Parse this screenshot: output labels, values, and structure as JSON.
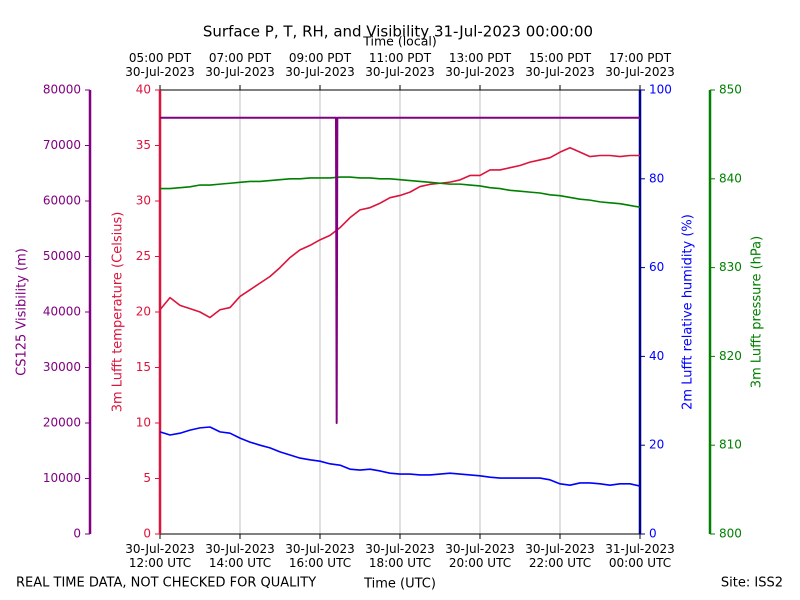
{
  "chart_data": {
    "type": "line",
    "title": "Surface P, T, RH, and Visibility 31-Jul-2023 00:00:00",
    "x_label": "Time (UTC)",
    "x2_label": "Time (local)",
    "footer_left": "REAL TIME DATA, NOT CHECKED FOR QUALITY",
    "footer_right": "Site: ISS2",
    "grid": "x",
    "xlim": [
      "2023-07-30T12:00",
      "2023-07-31T00:00"
    ],
    "xticks": [
      {
        "value": "2023-07-30T12:00",
        "label": "30-Jul-2023\n12:00 UTC"
      },
      {
        "value": "2023-07-30T14:00",
        "label": "30-Jul-2023\n14:00 UTC"
      },
      {
        "value": "2023-07-30T16:00",
        "label": "30-Jul-2023\n16:00 UTC"
      },
      {
        "value": "2023-07-30T18:00",
        "label": "30-Jul-2023\n18:00 UTC"
      },
      {
        "value": "2023-07-30T20:00",
        "label": "30-Jul-2023\n20:00 UTC"
      },
      {
        "value": "2023-07-30T22:00",
        "label": "30-Jul-2023\n22:00 UTC"
      },
      {
        "value": "2023-07-31T00:00",
        "label": "31-Jul-2023\n00:00 UTC"
      }
    ],
    "x2ticks": [
      {
        "value": "2023-07-30T12:00",
        "label": "05:00 PDT\n30-Jul-2023"
      },
      {
        "value": "2023-07-30T14:00",
        "label": "07:00 PDT\n30-Jul-2023"
      },
      {
        "value": "2023-07-30T16:00",
        "label": "09:00 PDT\n30-Jul-2023"
      },
      {
        "value": "2023-07-30T18:00",
        "label": "11:00 PDT\n30-Jul-2023"
      },
      {
        "value": "2023-07-30T20:00",
        "label": "13:00 PDT\n30-Jul-2023"
      },
      {
        "value": "2023-07-30T22:00",
        "label": "15:00 PDT\n30-Jul-2023"
      },
      {
        "value": "2023-07-31T00:00",
        "label": "17:00 PDT\n30-Jul-2023"
      }
    ],
    "ylim": [
      0,
      40
    ],
    "yticks": [
      0,
      5,
      10,
      15,
      20,
      25,
      30,
      35,
      40
    ],
    "y2lim": [
      0,
      100
    ],
    "y2ticks": [
      0,
      20,
      40,
      60,
      80,
      100
    ],
    "y3lim": [
      800,
      850
    ],
    "y3ticks": [
      800,
      810,
      820,
      830,
      840,
      850
    ],
    "y4lim": [
      0,
      80000
    ],
    "y4ticks": [
      0,
      10000,
      20000,
      30000,
      40000,
      50000,
      60000,
      70000,
      80000
    ],
    "x": [
      "2023-07-30T12:00",
      "2023-07-30T12:15",
      "2023-07-30T12:30",
      "2023-07-30T12:45",
      "2023-07-30T13:00",
      "2023-07-30T13:15",
      "2023-07-30T13:30",
      "2023-07-30T13:45",
      "2023-07-30T14:00",
      "2023-07-30T14:15",
      "2023-07-30T14:30",
      "2023-07-30T14:45",
      "2023-07-30T15:00",
      "2023-07-30T15:15",
      "2023-07-30T15:30",
      "2023-07-30T15:45",
      "2023-07-30T16:00",
      "2023-07-30T16:15",
      "2023-07-30T16:30",
      "2023-07-30T16:45",
      "2023-07-30T17:00",
      "2023-07-30T17:15",
      "2023-07-30T17:30",
      "2023-07-30T17:45",
      "2023-07-30T18:00",
      "2023-07-30T18:15",
      "2023-07-30T18:30",
      "2023-07-30T18:45",
      "2023-07-30T19:00",
      "2023-07-30T19:15",
      "2023-07-30T19:30",
      "2023-07-30T19:45",
      "2023-07-30T20:00",
      "2023-07-30T20:15",
      "2023-07-30T20:30",
      "2023-07-30T20:45",
      "2023-07-30T21:00",
      "2023-07-30T21:15",
      "2023-07-30T21:30",
      "2023-07-30T21:45",
      "2023-07-30T22:00",
      "2023-07-30T22:15",
      "2023-07-30T22:30",
      "2023-07-30T22:45",
      "2023-07-30T23:00",
      "2023-07-30T23:15",
      "2023-07-30T23:30",
      "2023-07-30T23:45",
      "2023-07-31T00:00"
    ],
    "series": [
      {
        "name": "3m Lufft temperature (Celsius)",
        "color": "#dc143c",
        "axis": "y",
        "values": [
          20.2,
          21.3,
          20.6,
          20.3,
          20,
          19.5,
          20.2,
          20.4,
          21.4,
          22,
          22.6,
          23.2,
          24,
          24.9,
          25.6,
          26,
          26.5,
          26.9,
          27.6,
          28.5,
          29.2,
          29.4,
          29.8,
          30.3,
          30.5,
          30.8,
          31.3,
          31.5,
          31.6,
          31.7,
          31.9,
          32.3,
          32.3,
          32.8,
          32.8,
          33,
          33.2,
          33.5,
          33.7,
          33.9,
          34.4,
          34.8,
          34.4,
          34,
          34.1,
          34.1,
          34,
          34.1,
          34.1
        ]
      },
      {
        "name": "2m Lufft relative humidity (%)",
        "color": "#0000ff",
        "axis": "y2",
        "values": [
          23,
          22.3,
          22.7,
          23.4,
          23.9,
          24.1,
          23,
          22.7,
          21.6,
          20.7,
          20,
          19.4,
          18.5,
          17.8,
          17.1,
          16.7,
          16.4,
          15.8,
          15.5,
          14.6,
          14.4,
          14.6,
          14.2,
          13.7,
          13.5,
          13.5,
          13.3,
          13.3,
          13.5,
          13.7,
          13.5,
          13.3,
          13.1,
          12.8,
          12.6,
          12.6,
          12.6,
          12.6,
          12.6,
          12.2,
          11.3,
          11,
          11.5,
          11.5,
          11.3,
          11,
          11.3,
          11.3,
          10.8
        ]
      },
      {
        "name": "3m Lufft pressure (hPa)",
        "color": "#008000",
        "axis": "y3",
        "values": [
          838.9,
          838.9,
          839.0,
          839.1,
          839.3,
          839.3,
          839.4,
          839.5,
          839.6,
          839.7,
          839.7,
          839.8,
          839.9,
          840.0,
          840.0,
          840.1,
          840.1,
          840.1,
          840.2,
          840.2,
          840.1,
          840.1,
          840.0,
          840.0,
          839.9,
          839.8,
          839.7,
          839.6,
          839.5,
          839.4,
          839.4,
          839.3,
          839.2,
          839.0,
          838.9,
          838.7,
          838.6,
          838.5,
          838.4,
          838.2,
          838.1,
          837.9,
          837.7,
          837.6,
          837.4,
          837.3,
          837.2,
          837.0,
          836.8
        ]
      },
      {
        "name": "CS125 Visibility (m)",
        "color": "#800080",
        "axis": "y4",
        "x": [
          "2023-07-30T12:00",
          "2023-07-30T16:24",
          "2023-07-30T16:25",
          "2023-07-30T16:26",
          "2023-07-31T00:00"
        ],
        "values": [
          75000,
          75000,
          20000,
          75000,
          75000
        ]
      }
    ]
  }
}
